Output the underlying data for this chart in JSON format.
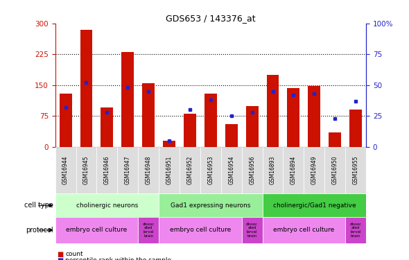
{
  "title": "GDS653 / 143376_at",
  "samples": [
    "GSM16944",
    "GSM16945",
    "GSM16946",
    "GSM16947",
    "GSM16948",
    "GSM16951",
    "GSM16952",
    "GSM16953",
    "GSM16954",
    "GSM16956",
    "GSM16893",
    "GSM16894",
    "GSM16949",
    "GSM16950",
    "GSM16955"
  ],
  "counts": [
    130,
    285,
    95,
    230,
    155,
    15,
    80,
    130,
    55,
    100,
    175,
    143,
    148,
    35,
    90
  ],
  "percentiles": [
    32,
    52,
    28,
    48,
    45,
    5,
    30,
    38,
    25,
    28,
    45,
    42,
    43,
    23,
    37
  ],
  "ylim_left": [
    0,
    300
  ],
  "ylim_right": [
    0,
    100
  ],
  "yticks_left": [
    0,
    75,
    150,
    225,
    300
  ],
  "yticks_right": [
    0,
    25,
    50,
    75,
    100
  ],
  "bar_color": "#cc1100",
  "dot_color": "#2222cc",
  "left_axis_color": "#cc1100",
  "right_axis_color": "#2222cc",
  "cell_type_groups": [
    {
      "label": "cholinergic neurons",
      "start": 0,
      "end": 5,
      "color": "#ccffcc"
    },
    {
      "label": "Gad1 expressing neurons",
      "start": 5,
      "end": 10,
      "color": "#99ee99"
    },
    {
      "label": "cholinergic/Gad1 negative",
      "start": 10,
      "end": 15,
      "color": "#44cc44"
    }
  ],
  "protocol_groups": [
    {
      "label": "embryo cell culture",
      "start": 0,
      "end": 4,
      "color": "#ee88ee"
    },
    {
      "label": "dissoc\nated\nlarval\nbrain",
      "start": 4,
      "end": 5,
      "color": "#cc44cc"
    },
    {
      "label": "embryo cell culture",
      "start": 5,
      "end": 9,
      "color": "#ee88ee"
    },
    {
      "label": "dissoc\nated\nlarval\nbrain",
      "start": 9,
      "end": 10,
      "color": "#cc44cc"
    },
    {
      "label": "embryo cell culture",
      "start": 10,
      "end": 14,
      "color": "#ee88ee"
    },
    {
      "label": "dissoc\nated\nlarval\nbrain",
      "start": 14,
      "end": 15,
      "color": "#cc44cc"
    }
  ],
  "legend_count_color": "#cc1100",
  "legend_pct_color": "#2222cc",
  "bar_width": 0.6,
  "xlim": [
    -0.5,
    14.5
  ]
}
